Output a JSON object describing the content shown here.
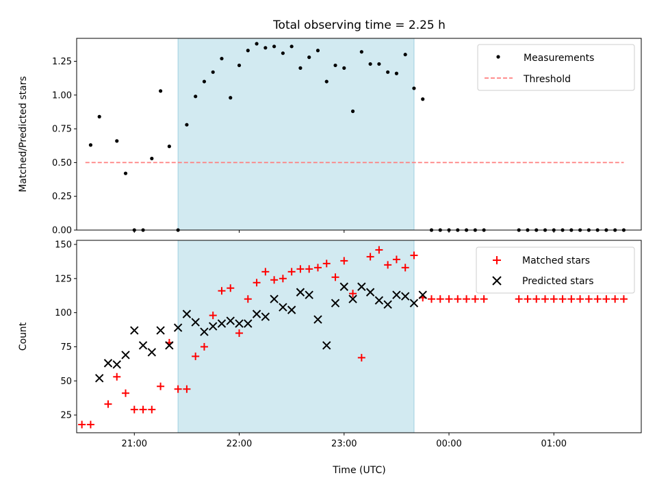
{
  "chart_data": [
    {
      "type": "scatter",
      "title": "Total observing time = 2.25 h",
      "xlabel": "",
      "ylabel": "Matched/Predicted stars",
      "xlim": [
        "20:27",
        "01:50"
      ],
      "ylim": [
        0,
        1.42
      ],
      "yticks": [
        "0.00",
        "0.25",
        "0.50",
        "0.75",
        "1.00",
        "1.25"
      ],
      "xtick_labels_shown": false,
      "legend_position": "top-right",
      "shaded_interval": {
        "start": "21:25",
        "end": "23:40",
        "color": "#add8e6"
      },
      "series": [
        {
          "name": "Measurements",
          "marker": "dot",
          "color": "#000000",
          "x": [
            "20:35",
            "20:40",
            "20:50",
            "20:55",
            "21:00",
            "21:05",
            "21:10",
            "21:15",
            "21:20",
            "21:25",
            "21:30",
            "21:35",
            "21:40",
            "21:45",
            "21:50",
            "21:55",
            "22:00",
            "22:05",
            "22:10",
            "22:15",
            "22:20",
            "22:25",
            "22:30",
            "22:35",
            "22:40",
            "22:45",
            "22:50",
            "22:55",
            "23:00",
            "23:05",
            "23:10",
            "23:15",
            "23:20",
            "23:25",
            "23:30",
            "23:35",
            "23:40",
            "23:45",
            "23:50",
            "23:55",
            "00:00",
            "00:05",
            "00:10",
            "00:15",
            "00:20",
            "00:40",
            "00:45",
            "00:50",
            "00:55",
            "01:00",
            "01:05",
            "01:10",
            "01:15",
            "01:20",
            "01:25",
            "01:30",
            "01:35",
            "01:40"
          ],
          "y": [
            0.63,
            0.84,
            0.66,
            0.42,
            0.0,
            0.0,
            0.53,
            1.03,
            0.62,
            0.0,
            0.78,
            0.99,
            1.1,
            1.17,
            1.27,
            0.98,
            1.22,
            1.33,
            1.38,
            1.35,
            1.36,
            1.31,
            1.36,
            1.2,
            1.28,
            1.33,
            1.1,
            1.22,
            1.2,
            0.88,
            1.32,
            1.23,
            1.23,
            1.17,
            1.16,
            1.3,
            1.05,
            0.97,
            0.0,
            0.0,
            0.0,
            0.0,
            0.0,
            0.0,
            0.0,
            0.0,
            0.0,
            0.0,
            0.0,
            0.0,
            0.0,
            0.0,
            0.0,
            0.0,
            0.0,
            0.0,
            0.0,
            0.0
          ]
        },
        {
          "name": "Threshold",
          "style": "dashed",
          "color": "#ff7f7f",
          "x": [
            "20:32",
            "01:40"
          ],
          "y": [
            0.5,
            0.5
          ]
        }
      ]
    },
    {
      "type": "scatter",
      "title": "",
      "xlabel": "Time (UTC)",
      "ylabel": "Count",
      "xlim": [
        "20:27",
        "01:50"
      ],
      "ylim": [
        12,
        153
      ],
      "yticks": [
        "25",
        "50",
        "75",
        "100",
        "125",
        "150"
      ],
      "xticks": [
        "21:00",
        "22:00",
        "23:00",
        "00:00",
        "01:00"
      ],
      "legend_position": "top-right",
      "shaded_interval": {
        "start": "21:25",
        "end": "23:40",
        "color": "#add8e6"
      },
      "series": [
        {
          "name": "Matched stars",
          "marker": "plus",
          "color": "#ff0000",
          "x": [
            "20:30",
            "20:35",
            "20:45",
            "20:50",
            "20:55",
            "21:00",
            "21:05",
            "21:10",
            "21:15",
            "21:20",
            "21:25",
            "21:30",
            "21:35",
            "21:40",
            "21:45",
            "21:50",
            "21:55",
            "22:00",
            "22:05",
            "22:10",
            "22:15",
            "22:20",
            "22:25",
            "22:30",
            "22:35",
            "22:40",
            "22:45",
            "22:50",
            "22:55",
            "23:00",
            "23:05",
            "23:10",
            "23:15",
            "23:20",
            "23:25",
            "23:30",
            "23:35",
            "23:40",
            "23:45",
            "23:50",
            "23:55",
            "00:00",
            "00:05",
            "00:10",
            "00:15",
            "00:20",
            "00:40",
            "00:45",
            "00:50",
            "00:55",
            "01:00",
            "01:05",
            "01:10",
            "01:15",
            "01:20",
            "01:25",
            "01:30",
            "01:35",
            "01:40"
          ],
          "y": [
            18,
            18,
            33,
            53,
            41,
            29,
            29,
            29,
            46,
            78,
            44,
            44,
            68,
            75,
            98,
            116,
            118,
            85,
            110,
            122,
            130,
            124,
            125,
            130,
            132,
            132,
            133,
            136,
            126,
            138,
            114,
            67,
            141,
            146,
            135,
            139,
            133,
            142,
            111,
            110,
            110,
            110,
            110,
            110,
            110,
            110,
            110,
            110,
            110,
            110,
            110,
            110,
            110,
            110,
            110,
            110,
            110,
            110,
            110
          ]
        },
        {
          "name": "Predicted stars",
          "marker": "x",
          "color": "#000000",
          "x": [
            "20:40",
            "20:45",
            "20:50",
            "20:55",
            "21:00",
            "21:05",
            "21:10",
            "21:15",
            "21:20",
            "21:25",
            "21:30",
            "21:35",
            "21:40",
            "21:45",
            "21:50",
            "21:55",
            "22:00",
            "22:05",
            "22:10",
            "22:15",
            "22:20",
            "22:25",
            "22:30",
            "22:35",
            "22:40",
            "22:45",
            "22:50",
            "22:55",
            "23:00",
            "23:05",
            "23:10",
            "23:15",
            "23:20",
            "23:25",
            "23:30",
            "23:35",
            "23:40",
            "23:45"
          ],
          "y": [
            52,
            63,
            62,
            69,
            87,
            76,
            71,
            87,
            76,
            89,
            99,
            93,
            86,
            90,
            92,
            94,
            92,
            92,
            99,
            97,
            110,
            104,
            102,
            115,
            113,
            95,
            76,
            107,
            119,
            110,
            119,
            115,
            109,
            106,
            113,
            112,
            107,
            113
          ]
        }
      ]
    }
  ]
}
